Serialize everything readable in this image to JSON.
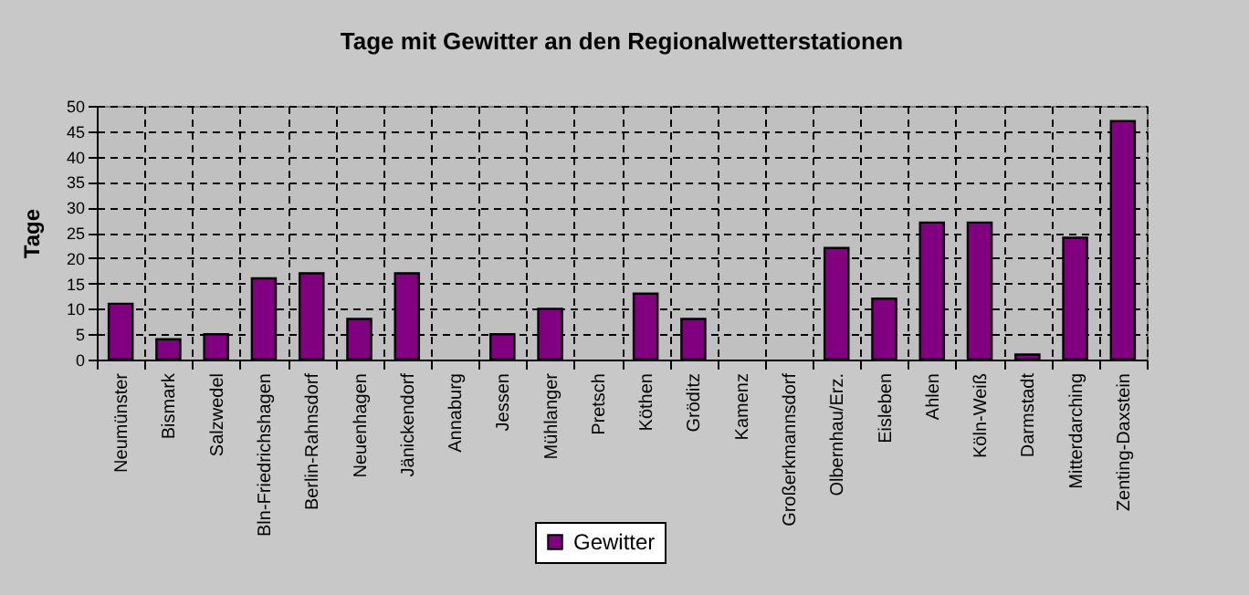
{
  "chart_data": {
    "type": "bar",
    "title": "Tage mit Gewitter an den Regionalwetterstationen",
    "ylabel": "Tage",
    "categories": [
      "Neumünster",
      "Bismark",
      "Salzwedel",
      "Bln-Friedrichshagen",
      "Berlin-Rahnsdorf",
      "Neuenhagen",
      "Jänickendorf",
      "Annaburg",
      "Jessen",
      "Mühlanger",
      "Pretsch",
      "Köthen",
      "Gröditz",
      "Kamenz",
      "Großerkmannsdorf",
      "Olbernhau/Erz.",
      "Eisleben",
      "Ahlen",
      "Köln-Weiß",
      "Darmstadt",
      "Mitterdarching",
      "Zenting-Daxstein"
    ],
    "series": [
      {
        "name": "Gewitter",
        "color": "#800080",
        "values": [
          11,
          4,
          5,
          16,
          17,
          8,
          17,
          0,
          5,
          10,
          0,
          13,
          8,
          0,
          0,
          22,
          12,
          27,
          27,
          1,
          24,
          47
        ]
      }
    ],
    "ylim": [
      0,
      50
    ],
    "yticks": [
      0,
      5,
      10,
      15,
      20,
      25,
      30,
      35,
      40,
      45,
      50
    ],
    "grid": true,
    "legend": "bottom"
  }
}
